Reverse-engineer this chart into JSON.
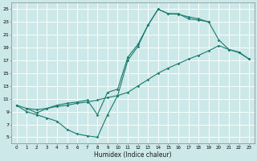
{
  "xlabel": "Humidex (Indice chaleur)",
  "bg_color": "#cce8e8",
  "grid_color": "#ffffff",
  "line_color": "#1a7a6e",
  "xlim": [
    -0.5,
    23.5
  ],
  "ylim": [
    4,
    26
  ],
  "xticks": [
    0,
    1,
    2,
    3,
    4,
    5,
    6,
    7,
    8,
    9,
    10,
    11,
    12,
    13,
    14,
    15,
    16,
    17,
    18,
    19,
    20,
    21,
    22,
    23
  ],
  "yticks": [
    5,
    7,
    9,
    11,
    13,
    15,
    17,
    19,
    21,
    23,
    25
  ],
  "line1_x": [
    0,
    1,
    2,
    3,
    4,
    5,
    6,
    7,
    8,
    9,
    10,
    11,
    12,
    13,
    14,
    15,
    16,
    17,
    18,
    19
  ],
  "line1_y": [
    10,
    9,
    8.5,
    8,
    7.5,
    6.2,
    5.5,
    5.2,
    5.0,
    8.5,
    11.5,
    17.0,
    19.2,
    22.5,
    25.0,
    24.3,
    24.2,
    23.8,
    23.5,
    23.0
  ],
  "line2_x": [
    0,
    1,
    2,
    3,
    4,
    5,
    6,
    7,
    8,
    9,
    10,
    11,
    12,
    13,
    14,
    15,
    16,
    17,
    18,
    19,
    20,
    21,
    22,
    23
  ],
  "line2_y": [
    10.0,
    9.5,
    9.3,
    9.5,
    9.8,
    10.0,
    10.3,
    10.5,
    10.8,
    11.2,
    11.5,
    12.0,
    13.0,
    14.0,
    15.0,
    15.8,
    16.5,
    17.2,
    17.8,
    18.5,
    19.3,
    18.7,
    18.3,
    17.2
  ],
  "line3_x": [
    1,
    2,
    3,
    4,
    5,
    6,
    7,
    8,
    9,
    10,
    11,
    12,
    13,
    14,
    15,
    16,
    17,
    18,
    19,
    20,
    21,
    22,
    23
  ],
  "line3_y": [
    9.5,
    8.8,
    9.5,
    10.0,
    10.3,
    10.5,
    10.8,
    8.5,
    12.0,
    12.5,
    17.5,
    19.5,
    22.5,
    25.0,
    24.3,
    24.3,
    23.5,
    23.3,
    23.0,
    20.2,
    18.7,
    18.2,
    17.2
  ]
}
